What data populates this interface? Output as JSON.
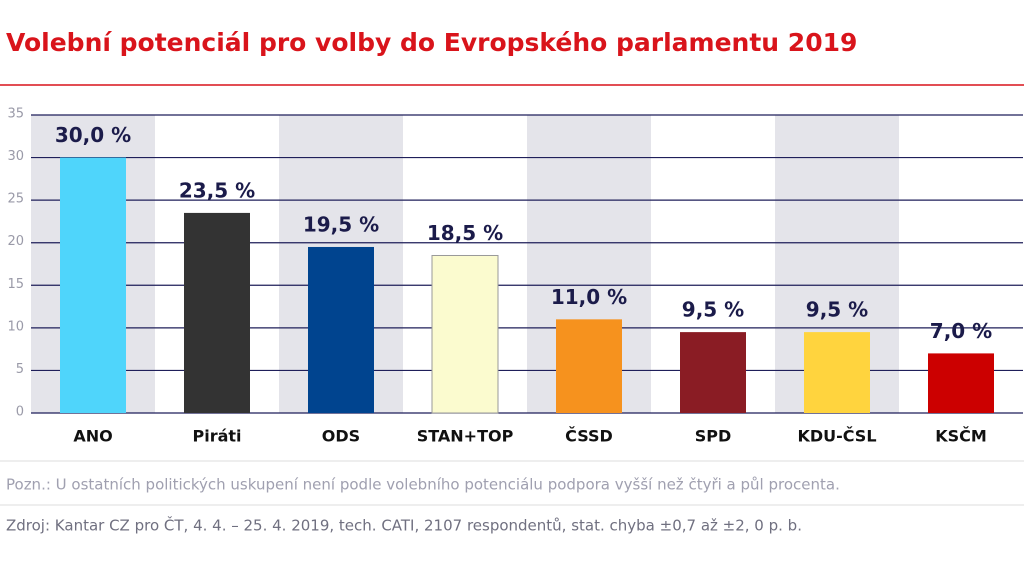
{
  "chart_data": {
    "type": "bar",
    "title": "Volební potenciál pro volby do Evropského parlamentu 2019",
    "categories": [
      "ANO",
      "Piráti",
      "ODS",
      "STAN+TOP",
      "ČSSD",
      "SPD",
      "KDU-ČSL",
      "KSČM"
    ],
    "values": [
      30.0,
      23.5,
      19.5,
      18.5,
      11.0,
      9.5,
      9.5,
      7.0
    ],
    "value_labels": [
      "30,0 %",
      "23,5 %",
      "19,5 %",
      "18,5 %",
      "11,0 %",
      "9,5 %",
      "9,5 %",
      "7,0 %"
    ],
    "colors": [
      "#4fd5fb",
      "#333333",
      "#00448f",
      "#fbfbcf",
      "#f6921e",
      "#8a1c24",
      "#ffd43e",
      "#cc0000"
    ],
    "ylim": [
      0,
      35
    ],
    "yticks": [
      0,
      5,
      10,
      15,
      20,
      25,
      30,
      35
    ],
    "grid": true,
    "note": "Pozn.: U ostatních politických uskupení není podle volebního potenciálu podpora vyšší než čtyři a půl procenta.",
    "source": "Zdroj: Kantar CZ pro ČT, 4. 4. – 25. 4. 2019, tech. CATI, 2107 respondentů, stat. chyba ±0,7 až ±2, 0 p. b."
  }
}
